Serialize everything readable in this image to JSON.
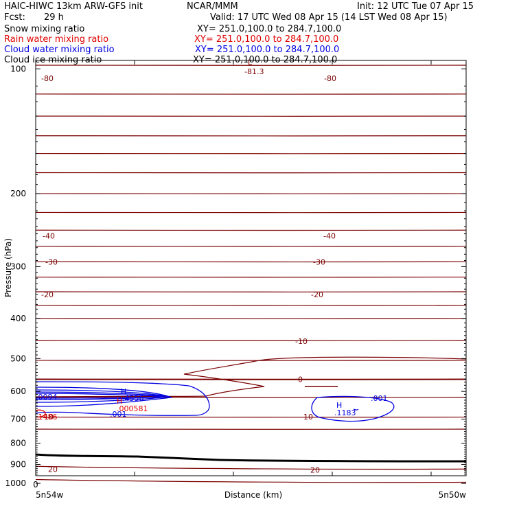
{
  "header": {
    "line1_left": "HAIC-HIWC 13km ARW-GFS init",
    "line1_mid": "NCAR/MMM",
    "line1_right": "Init: 12 UTC Tue 07 Apr 15",
    "fcst_label": "Fcst:",
    "fcst_value": "29 h",
    "valid": "Valid: 17 UTC Wed 08 Apr 15 (14 LST Wed 08 Apr 15)"
  },
  "fields": [
    {
      "name": "Snow mixing ratio",
      "xy": "XY= 251.0,100.0 to 284.7,100.0",
      "color": "#000000"
    },
    {
      "name": "Rain water mixing ratio",
      "xy": "XY= 251.0,100.0 to 284.7,100.0",
      "color": "#e00000"
    },
    {
      "name": "Cloud water mixing ratio",
      "xy": "XY= 251.0,100.0 to 284.7,100.0",
      "color": "#0000e0"
    },
    {
      "name": "Cloud ice mixing ratio",
      "xy": "XY= 251.0,100.0 to 284.7,100.0",
      "color": "#000000"
    }
  ],
  "colors": {
    "temperature": "#7a0000",
    "cloud_water": "#0000e0",
    "rain": "#e00000",
    "ground": "#000000"
  },
  "chart_data": {
    "type": "cross-section",
    "xlabel": "Distance (km)",
    "ylabel": "Pressure (hPa)",
    "x_tick_label": "0",
    "ylim": [
      1050,
      50
    ],
    "y_scale": "log",
    "yticks": [
      100,
      200,
      300,
      400,
      500,
      600,
      700,
      800,
      900,
      1000
    ],
    "x_endpoints": {
      "left": "5n54w",
      "right": "5n50w"
    },
    "isotherm_labels": [
      {
        "text": "-80",
        "p": 105
      },
      {
        "text": "-81.3",
        "p": 101
      },
      {
        "text": "L",
        "p": 93
      },
      {
        "text": "-40",
        "p": 253
      },
      {
        "text": "-30",
        "p": 292
      },
      {
        "text": "-20",
        "p": 350
      },
      {
        "text": "-10",
        "p": 454
      },
      {
        "text": "0",
        "p": 561
      },
      {
        "text": "10",
        "p": 690
      },
      {
        "text": "20",
        "p": 925
      }
    ],
    "cloud_water_labels": [
      {
        "text": "H",
        "p": 840
      },
      {
        "text": ".4556",
        "p": 862
      },
      {
        "text": ".0094",
        "p": 855
      },
      {
        "text": ".001",
        "p": 897
      },
      {
        "text": "H",
        "p": 883
      },
      {
        "text": ".1183",
        "p": 897
      },
      {
        "text": ".001",
        "p": 870
      }
    ],
    "rain_labels": [
      {
        "text": "H",
        "p": 872
      },
      {
        "text": ".000581",
        "p": 887
      },
      {
        "text": ".1486",
        "p": 900
      }
    ],
    "ground_pressure": 1005
  }
}
